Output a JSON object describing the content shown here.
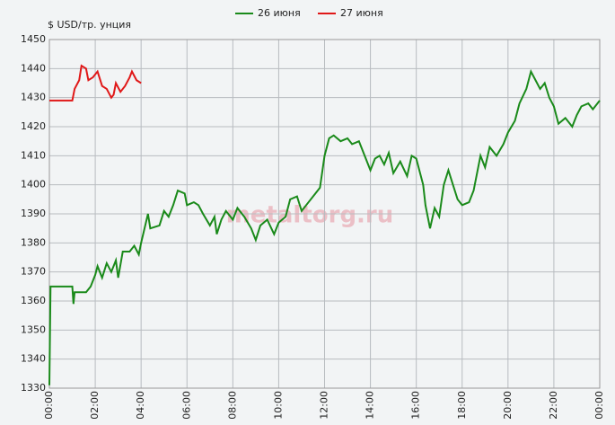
{
  "chart_data": {
    "type": "line",
    "y_label": "$ USD/тр. унция",
    "watermark": "metaltorg.ru",
    "xlim": [
      0,
      24
    ],
    "ylim": [
      1330,
      1450
    ],
    "xticks": [
      {
        "value": 0,
        "label": "00:00"
      },
      {
        "value": 2,
        "label": "02:00"
      },
      {
        "value": 4,
        "label": "04:00"
      },
      {
        "value": 6,
        "label": "06:00"
      },
      {
        "value": 8,
        "label": "08:00"
      },
      {
        "value": 10,
        "label": "10:00"
      },
      {
        "value": 12,
        "label": "12:00"
      },
      {
        "value": 14,
        "label": "14:00"
      },
      {
        "value": 16,
        "label": "16:00"
      },
      {
        "value": 18,
        "label": "18:00"
      },
      {
        "value": 20,
        "label": "20:00"
      },
      {
        "value": 22,
        "label": "22:00"
      },
      {
        "value": 24,
        "label": "00:00"
      }
    ],
    "yticks": [
      1330,
      1340,
      1350,
      1360,
      1370,
      1380,
      1390,
      1400,
      1410,
      1420,
      1430,
      1440,
      1450
    ],
    "grid": true,
    "series": [
      {
        "name": "26 июня",
        "color": "#1a8a1a",
        "x": [
          0,
          0.05,
          1.0,
          1.05,
          1.1,
          1.6,
          1.8,
          2.0,
          2.1,
          2.3,
          2.5,
          2.7,
          2.9,
          3.0,
          3.2,
          3.5,
          3.7,
          3.9,
          4.0,
          4.3,
          4.4,
          4.8,
          5.0,
          5.2,
          5.4,
          5.6,
          5.9,
          6.0,
          6.3,
          6.5,
          6.7,
          7.0,
          7.2,
          7.3,
          7.5,
          7.7,
          8.0,
          8.2,
          8.5,
          8.8,
          9.0,
          9.2,
          9.5,
          9.8,
          10.0,
          10.3,
          10.5,
          10.8,
          11.0,
          11.3,
          11.6,
          11.8,
          12.0,
          12.2,
          12.4,
          12.7,
          13.0,
          13.2,
          13.5,
          13.7,
          14.0,
          14.2,
          14.4,
          14.6,
          14.8,
          15.0,
          15.3,
          15.6,
          15.8,
          16.0,
          16.1,
          16.3,
          16.4,
          16.6,
          16.8,
          17.0,
          17.2,
          17.4,
          17.6,
          17.8,
          18.0,
          18.3,
          18.5,
          18.8,
          19.0,
          19.2,
          19.5,
          19.8,
          20.0,
          20.3,
          20.5,
          20.8,
          21.0,
          21.2,
          21.4,
          21.6,
          21.8,
          22.0,
          22.2,
          22.5,
          22.8,
          23.0,
          23.2,
          23.5,
          23.7,
          24.0
        ],
        "values": [
          1331,
          1365,
          1365,
          1359,
          1363,
          1363,
          1365,
          1369,
          1372,
          1368,
          1373,
          1370,
          1374,
          1368,
          1377,
          1377,
          1379,
          1376,
          1380,
          1390,
          1385,
          1386,
          1391,
          1389,
          1393,
          1398,
          1397,
          1393,
          1394,
          1393,
          1390,
          1386,
          1389,
          1383,
          1388,
          1391,
          1388,
          1392,
          1389,
          1385,
          1381,
          1386,
          1388,
          1383,
          1387,
          1389,
          1395,
          1396,
          1391,
          1394,
          1397,
          1399,
          1410,
          1416,
          1417,
          1415,
          1416,
          1414,
          1415,
          1411,
          1405,
          1409,
          1410,
          1407,
          1411,
          1404,
          1408,
          1403,
          1410,
          1409,
          1406,
          1400,
          1393,
          1385,
          1392,
          1389,
          1400,
          1405,
          1400,
          1395,
          1393,
          1394,
          1398,
          1410,
          1406,
          1413,
          1410,
          1414,
          1418,
          1422,
          1428,
          1433,
          1439,
          1436,
          1433,
          1435,
          1430,
          1427,
          1421,
          1423,
          1420,
          1424,
          1427,
          1428,
          1426,
          1429
        ]
      },
      {
        "name": "27 июня",
        "color": "#e01818",
        "x": [
          0,
          1.0,
          1.1,
          1.3,
          1.4,
          1.6,
          1.7,
          1.9,
          2.1,
          2.3,
          2.5,
          2.7,
          2.8,
          2.9,
          3.1,
          3.3,
          3.5,
          3.6,
          3.8,
          4.0
        ],
        "values": [
          1429,
          1429,
          1433,
          1436,
          1441,
          1440,
          1436,
          1437,
          1439,
          1434,
          1433,
          1430,
          1431,
          1435,
          1432,
          1434,
          1437,
          1439,
          1436,
          1435
        ]
      }
    ]
  }
}
